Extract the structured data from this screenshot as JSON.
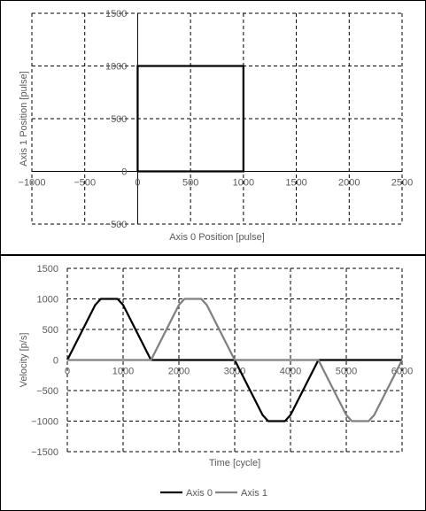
{
  "chart_data": [
    {
      "type": "line",
      "xlabel": "Axis 0 Position [pulse]",
      "ylabel": "Axis 1 Position [pulse]",
      "xlim": [
        -1000,
        2500
      ],
      "ylim": [
        -500,
        1500
      ],
      "xticks": [
        -1000,
        -500,
        0,
        500,
        1000,
        1500,
        2000,
        2500
      ],
      "yticks": [
        -500,
        0,
        500,
        1000,
        1500
      ],
      "grid": true,
      "series": [
        {
          "x": [
            0,
            1000,
            1000,
            0,
            0
          ],
          "y": [
            0,
            0,
            1000,
            1000,
            0
          ],
          "color": "#000000"
        }
      ]
    },
    {
      "type": "line",
      "xlabel": "Time [cycle]",
      "ylabel": "Velocity [p/s]",
      "xlim": [
        0,
        6000
      ],
      "ylim": [
        -1500,
        1500
      ],
      "xticks": [
        0,
        1000,
        2000,
        3000,
        4000,
        5000,
        6000
      ],
      "yticks": [
        -1500,
        -1000,
        -500,
        0,
        500,
        1000,
        1500
      ],
      "grid": true,
      "legend": "bottom",
      "series": [
        {
          "name": "Axis 0",
          "color": "#000000",
          "x": [
            0,
            500,
            600,
            900,
            1000,
            1500,
            3000,
            3500,
            3600,
            3900,
            4000,
            4500,
            6000
          ],
          "y": [
            0,
            900,
            1000,
            1000,
            900,
            0,
            0,
            -900,
            -1000,
            -1000,
            -900,
            0,
            0
          ]
        },
        {
          "name": "Axis 1",
          "color": "#808080",
          "x": [
            0,
            1500,
            2000,
            2100,
            2400,
            2500,
            3000,
            4500,
            5000,
            5100,
            5400,
            5500,
            6000
          ],
          "y": [
            0,
            0,
            900,
            1000,
            1000,
            900,
            0,
            0,
            -900,
            -1000,
            -1000,
            -900,
            0
          ]
        }
      ]
    }
  ]
}
